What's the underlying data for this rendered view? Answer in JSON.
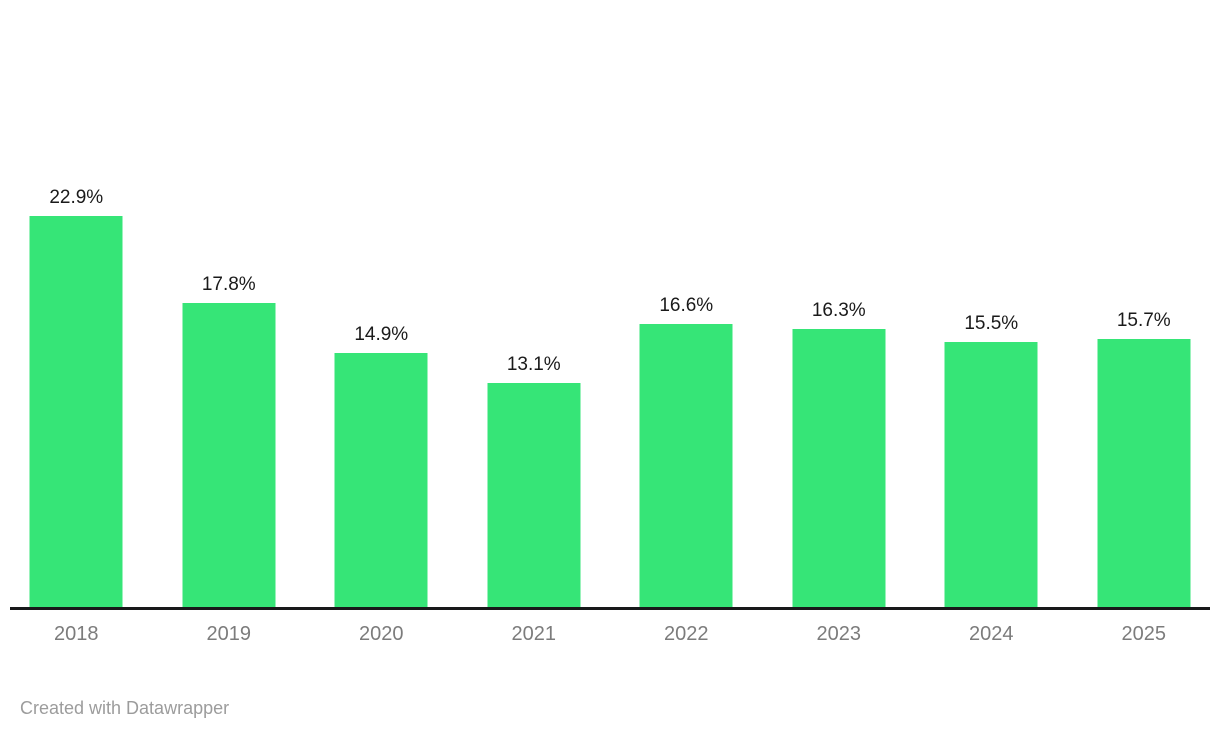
{
  "footer": {
    "attribution": "Created with Datawrapper"
  },
  "colors": {
    "background": "#ffffff",
    "bar": "#36e577",
    "axis_line": "#18181a",
    "value_label": "#1a1a1a",
    "year_label": "#7c7c7c",
    "footer_text": "#9c9c9c"
  },
  "chart_data": {
    "type": "bar",
    "categories": [
      "2018",
      "2019",
      "2020",
      "2021",
      "2022",
      "2023",
      "2024",
      "2025"
    ],
    "values": [
      22.9,
      17.8,
      14.9,
      13.1,
      16.6,
      16.3,
      15.5,
      15.7
    ],
    "value_labels": [
      "22.9%",
      "17.8%",
      "14.9%",
      "13.1%",
      "16.6%",
      "16.3%",
      "15.5%",
      "15.7%"
    ],
    "unit": "%",
    "title": "",
    "xlabel": "",
    "ylabel": "",
    "ylim": [
      0,
      25
    ],
    "grid": false,
    "y_axis_visible": false,
    "value_label_position": "above-bar",
    "legend": "none"
  }
}
